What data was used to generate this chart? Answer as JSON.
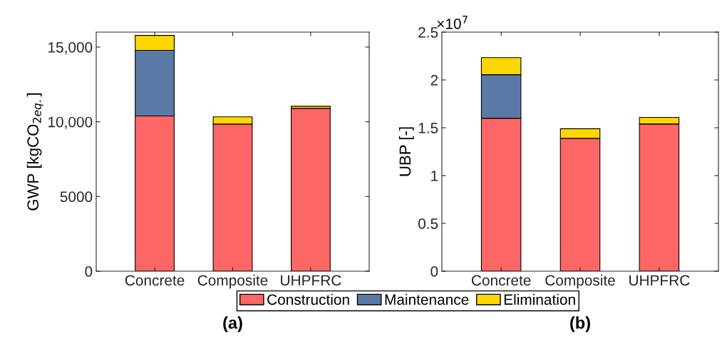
{
  "chart_data": [
    {
      "type": "bar",
      "title": "(a)",
      "ylabel": "GWP [kgCO$_{2eq.}$]",
      "categories": [
        "Concrete",
        "Composite",
        "UHPFRC"
      ],
      "stacked": true,
      "series": [
        {
          "name": "Construction",
          "color": "#ff6666",
          "values": [
            10390,
            9850,
            10900
          ]
        },
        {
          "name": "Maintenance",
          "color": "#5a7aa5",
          "values": [
            4390,
            0,
            0
          ]
        },
        {
          "name": "Elimination",
          "color": "#ffd700",
          "values": [
            1000,
            480,
            140
          ]
        }
      ],
      "ylim": [
        0,
        16000
      ],
      "yticks": [
        0,
        5000,
        {
          "value": 10000,
          "label": "10,000"
        },
        {
          "value": 15000,
          "label": "15,000"
        }
      ],
      "grid": false,
      "legend": "bottom"
    },
    {
      "type": "bar",
      "title": "(b)",
      "ylabel": "UBP [-]",
      "annotations": [
        "×10$^{7}$"
      ],
      "categories": [
        "Concrete",
        "Composite",
        "UHPFRC"
      ],
      "stacked": true,
      "series": [
        {
          "color": "#ff6666",
          "values": [
            1.6,
            1.39,
            1.54
          ]
        },
        {
          "color": "#5a7aa5",
          "values": [
            0.455,
            0,
            0
          ]
        },
        {
          "color": "#ffd700",
          "values": [
            0.178,
            0.1,
            0.068
          ]
        }
      ],
      "ylim": [
        0,
        2.5
      ],
      "yticks": [
        0,
        0.5,
        1,
        1.5,
        2,
        2.5
      ],
      "grid": false
    }
  ]
}
